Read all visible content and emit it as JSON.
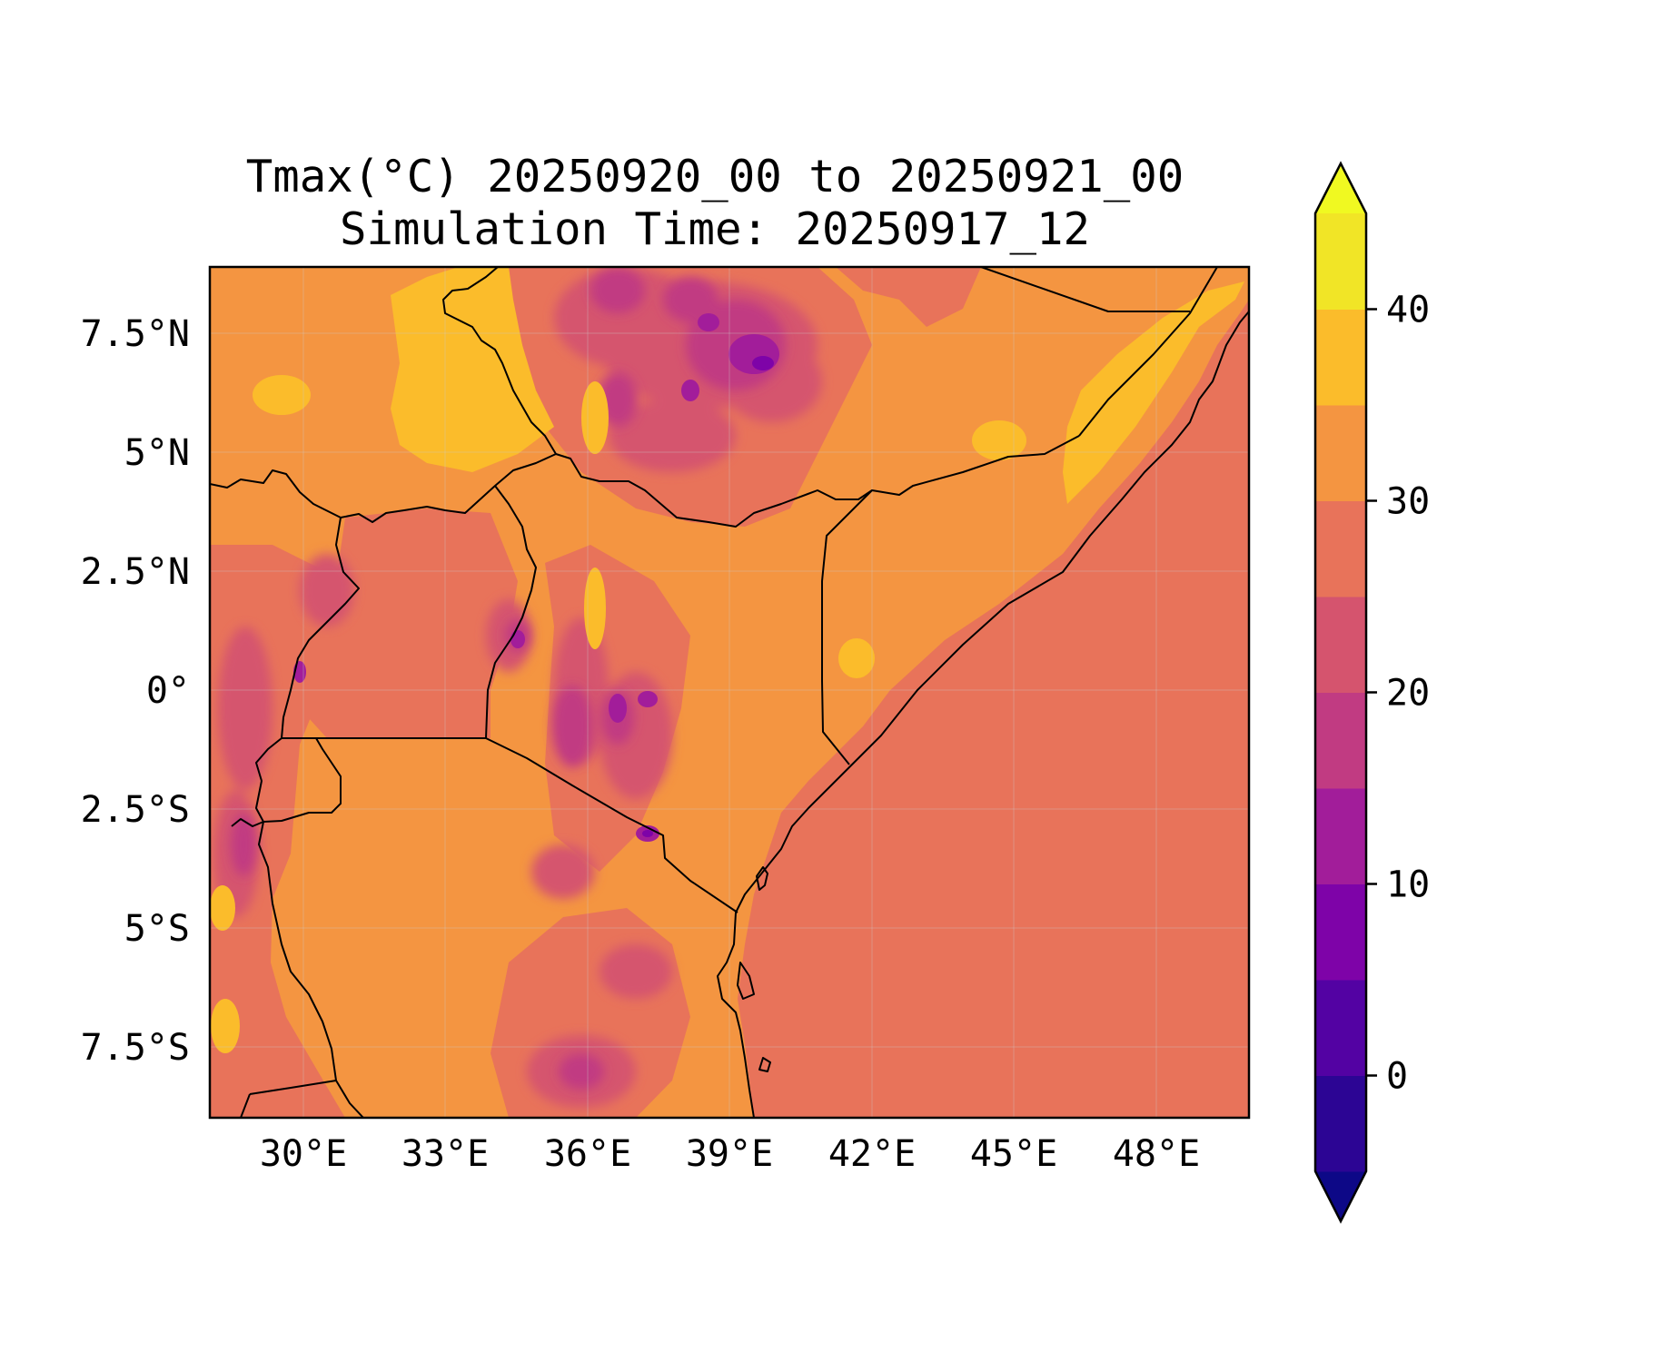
{
  "figure": {
    "title_line1": "Tmax(°C) 20250920_00 to 20250921_00",
    "title_line2": "Simulation Time: 20250917_12"
  },
  "map": {
    "variable": "Tmax",
    "units": "°C",
    "lon_range": [
      28,
      50
    ],
    "lat_range": [
      -9,
      9
    ],
    "lon_ticks": [
      30,
      33,
      36,
      39,
      42,
      45,
      48
    ],
    "lon_tick_labels": [
      "30°E",
      "33°E",
      "36°E",
      "39°E",
      "42°E",
      "45°E",
      "48°E"
    ],
    "lat_ticks": [
      7.5,
      5,
      2.5,
      0,
      -2.5,
      -5,
      -7.5
    ],
    "lat_tick_labels": [
      "7.5°N",
      "5°N",
      "2.5°N",
      "0°",
      "2.5°S",
      "5°S",
      "7.5°S"
    ],
    "grid": true,
    "ocean_band_color": "#e8735a",
    "land_band_color": "#f49541"
  },
  "colorbar": {
    "levels": [
      -5,
      0,
      5,
      10,
      15,
      20,
      25,
      30,
      35,
      40,
      45
    ],
    "tick_values": [
      0,
      10,
      20,
      30,
      40
    ],
    "tick_labels": [
      "0",
      "10",
      "20",
      "30",
      "40"
    ],
    "colors": [
      "#2c0594",
      "#5302a3",
      "#7e03a8",
      "#a21d9a",
      "#c13b82",
      "#d5546e",
      "#e8735a",
      "#f49541",
      "#fbbc2b",
      "#f1e526"
    ],
    "under_color": "#0d0887",
    "over_color": "#f0f921",
    "extend": "both"
  }
}
